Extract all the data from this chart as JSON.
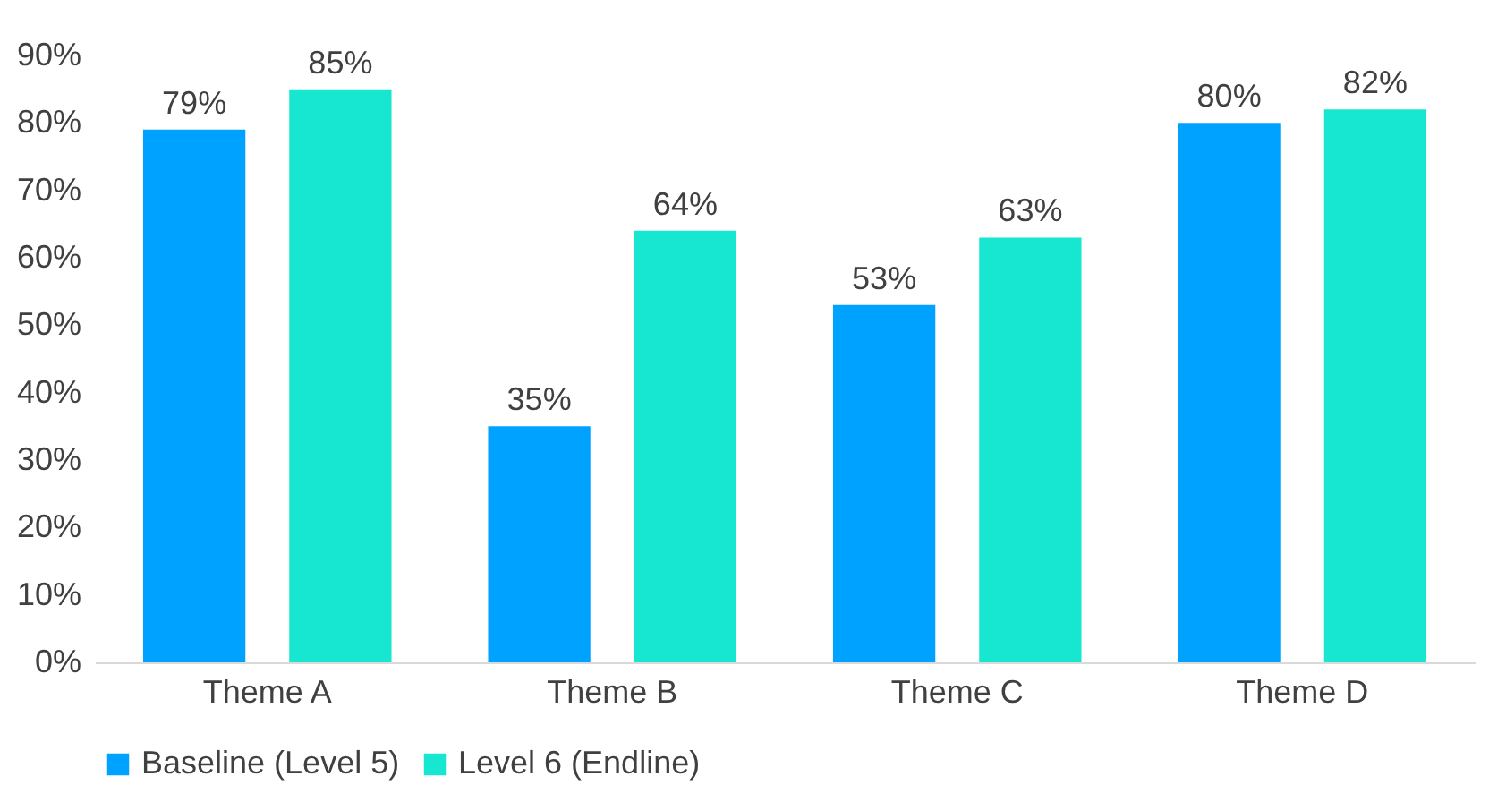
{
  "chart_data": {
    "type": "bar",
    "categories": [
      "Theme A",
      "Theme B",
      "Theme C",
      "Theme D"
    ],
    "series": [
      {
        "name": "Baseline (Level 5)",
        "color": "#00a2ff",
        "values": [
          79,
          35,
          53,
          80
        ],
        "value_labels": [
          "79%",
          "35%",
          "53%",
          "80%"
        ]
      },
      {
        "name": "Level 6 (Endline)",
        "color": "#17e6d0",
        "values": [
          85,
          64,
          63,
          82
        ],
        "value_labels": [
          "85%",
          "64%",
          "63%",
          "82%"
        ]
      }
    ],
    "ylim": [
      0,
      90
    ],
    "yticks": [
      {
        "value": 0,
        "label": "0%"
      },
      {
        "value": 10,
        "label": "10%"
      },
      {
        "value": 20,
        "label": "20%"
      },
      {
        "value": 30,
        "label": "30%"
      },
      {
        "value": 40,
        "label": "40%"
      },
      {
        "value": 50,
        "label": "50%"
      },
      {
        "value": 60,
        "label": "60%"
      },
      {
        "value": 70,
        "label": "70%"
      },
      {
        "value": 80,
        "label": "80%"
      },
      {
        "value": 90,
        "label": "90%"
      }
    ],
    "grid": false,
    "legend": "bottom"
  }
}
